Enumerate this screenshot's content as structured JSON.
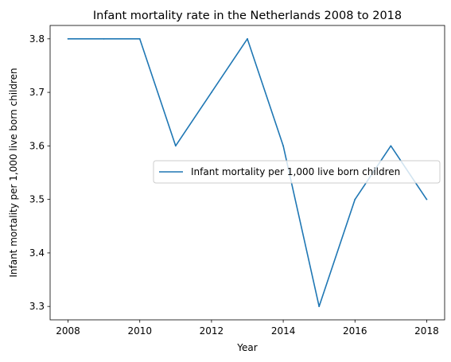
{
  "chart_data": {
    "type": "line",
    "title": "Infant mortality rate in the Netherlands 2008 to 2018",
    "xlabel": "Year",
    "ylabel": "Infant mortality per 1,000 live born children",
    "x": [
      2008,
      2009,
      2010,
      2011,
      2012,
      2013,
      2014,
      2015,
      2016,
      2017,
      2018
    ],
    "series": [
      {
        "name": "Infant mortality per 1,000 live born children",
        "values": [
          3.8,
          3.8,
          3.8,
          3.6,
          3.7,
          3.8,
          3.6,
          3.3,
          3.5,
          3.6,
          3.5
        ],
        "color": "#1f77b4"
      }
    ],
    "xticks": [
      "2008",
      "2010",
      "2012",
      "2014",
      "2016",
      "2018"
    ],
    "yticks": [
      "3.3",
      "3.4",
      "3.5",
      "3.6",
      "3.7",
      "3.8"
    ],
    "xlim": [
      2007.5,
      2018.5
    ],
    "ylim": [
      3.275,
      3.825
    ],
    "grid": false,
    "legend_position": "center-right"
  }
}
